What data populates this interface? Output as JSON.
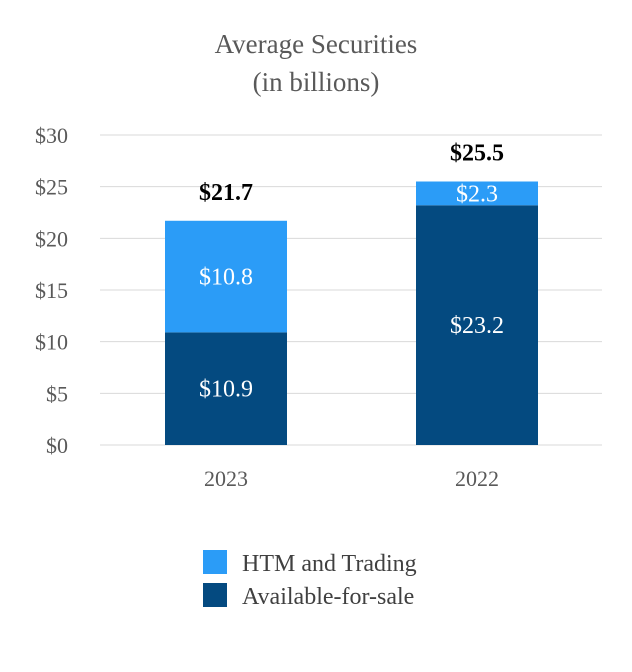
{
  "colors": {
    "htm": "#2b9cf7",
    "afs": "#044a80",
    "grid": "#d9d9d9",
    "text": "#595959"
  },
  "chart_data": {
    "type": "bar",
    "stacked": true,
    "title_lines": [
      "Average Securities",
      "(in billions)"
    ],
    "categories": [
      "2023",
      "2022"
    ],
    "series": [
      {
        "name": "Available-for-sale",
        "values": [
          10.9,
          23.2
        ],
        "labels": [
          "$10.9",
          "$23.2"
        ]
      },
      {
        "name": "HTM and Trading",
        "values": [
          10.8,
          2.3
        ],
        "labels": [
          "$10.8",
          "$2.3"
        ]
      }
    ],
    "totals": [
      "$21.7",
      "$25.5"
    ],
    "ylim": [
      0,
      30
    ],
    "yticks": [
      0,
      5,
      10,
      15,
      20,
      25,
      30
    ],
    "ytick_labels": [
      "$0",
      "$5",
      "$10",
      "$15",
      "$20",
      "$25",
      "$30"
    ],
    "grid": true,
    "legend_position": "bottom",
    "legend": [
      {
        "name": "HTM and Trading",
        "color": "#2b9cf7"
      },
      {
        "name": "Available-for-sale",
        "color": "#044a80"
      }
    ]
  }
}
